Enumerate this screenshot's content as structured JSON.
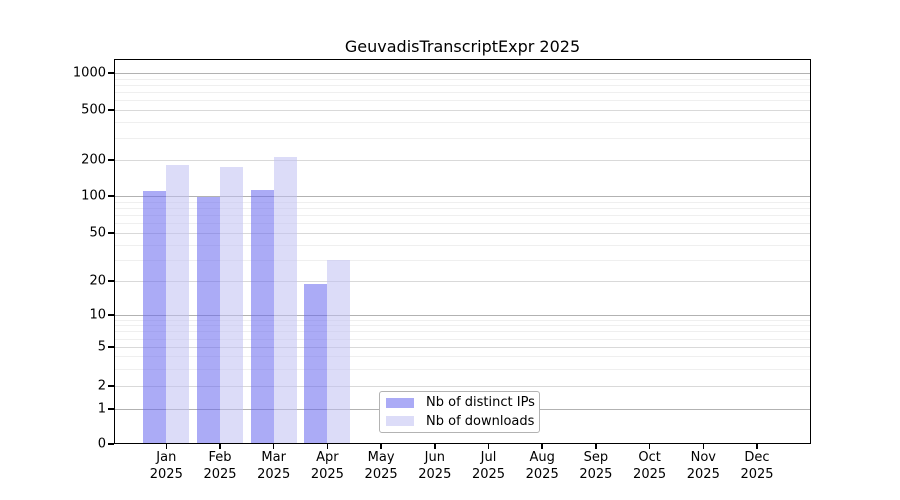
{
  "chart_data": {
    "type": "bar",
    "title": "GeuvadisTranscriptExpr 2025",
    "xlabel": "",
    "ylabel": "",
    "yscale": "symlog",
    "yticks": [
      0,
      1,
      2,
      5,
      10,
      20,
      50,
      100,
      200,
      500,
      1000
    ],
    "minor_yticks": [
      3,
      4,
      6,
      7,
      8,
      9,
      30,
      40,
      60,
      70,
      80,
      90,
      300,
      400,
      600,
      700,
      800,
      900
    ],
    "grid": true,
    "categories": [
      {
        "month": "Jan",
        "year": "2025"
      },
      {
        "month": "Feb",
        "year": "2025"
      },
      {
        "month": "Mar",
        "year": "2025"
      },
      {
        "month": "Apr",
        "year": "2025"
      },
      {
        "month": "May",
        "year": "2025"
      },
      {
        "month": "Jun",
        "year": "2025"
      },
      {
        "month": "Jul",
        "year": "2025"
      },
      {
        "month": "Aug",
        "year": "2025"
      },
      {
        "month": "Sep",
        "year": "2025"
      },
      {
        "month": "Oct",
        "year": "2025"
      },
      {
        "month": "Nov",
        "year": "2025"
      },
      {
        "month": "Dec",
        "year": "2025"
      }
    ],
    "series": [
      {
        "name": "Nb of distinct IPs",
        "color": "#6666ee",
        "fill_alpha": 0.55,
        "rendered_color": "#ababf5",
        "values": [
          110,
          99,
          113,
          19,
          null,
          null,
          null,
          null,
          null,
          null,
          null,
          null
        ]
      },
      {
        "name": "Nb of downloads",
        "color": "#bfbff2",
        "fill_alpha": 0.55,
        "rendered_color": "#dcdcf8",
        "values": [
          180,
          174,
          210,
          30,
          null,
          null,
          null,
          null,
          null,
          null,
          null,
          null
        ]
      }
    ],
    "legend_position": "lower center"
  },
  "colors": {
    "background": "#ffffff",
    "grid_minor": "#efefef",
    "grid_major": "#d9d9d9",
    "grid_decade": "#b2b2b2",
    "spine": "#000000",
    "text": "#000000",
    "legend_border": "#b3b3b3"
  }
}
